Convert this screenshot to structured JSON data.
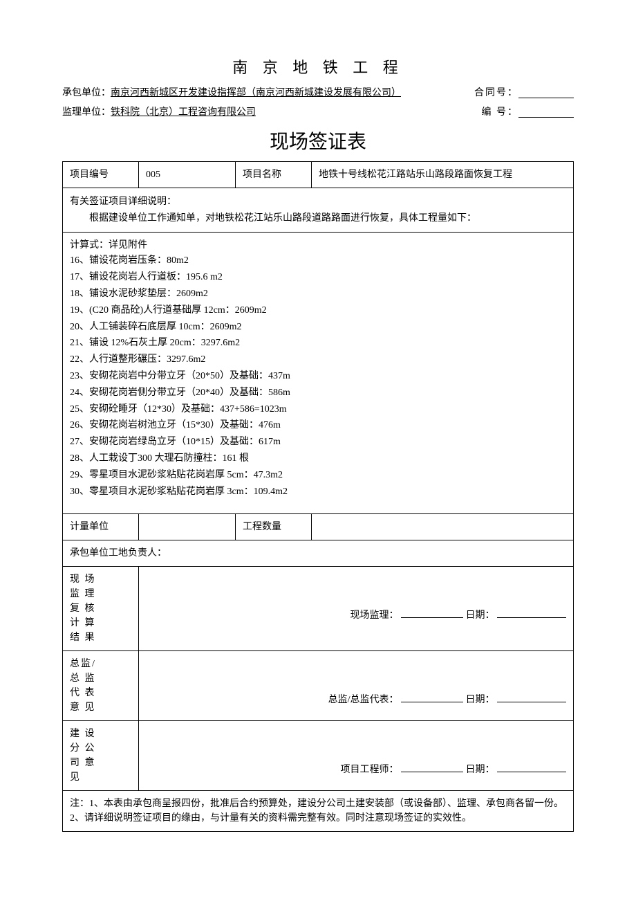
{
  "doc_title": "南 京 地 铁 工 程",
  "header": {
    "contractor_label": "承包单位：",
    "contractor_value": "南京河西新城区开发建设指挥部（南京河西新城建设发展有限公司）",
    "contract_no_label": "合同号：",
    "supervisor_label": "监理单位：",
    "supervisor_value": "铁科院（北京）工程咨询有限公司",
    "serial_no_label": "编  号："
  },
  "form_title": "现场签证表",
  "row1": {
    "proj_no_label": "项目编号",
    "proj_no_value": "005",
    "proj_name_label": "项目名称",
    "proj_name_value": "地铁十号线松花江路站乐山路段路面恢复工程"
  },
  "detail": {
    "intro_label": "有关签证项目详细说明：",
    "intro_text": "根据建设单位工作通知单，对地铁松花江站乐山路段道路路面进行恢复，具体工程量如下：",
    "calc_label": "计算式：详见附件",
    "items": [
      "16、铺设花岗岩压条：80m2",
      "17、铺设花岗岩人行道板：195.6 m2",
      "18、铺设水泥砂浆垫层：2609m2",
      "19、(C20 商品砼)人行道基础厚 12cm：2609m2",
      "20、人工铺装碎石底层厚 10cm：2609m2",
      "21、铺设 12%石灰土厚 20cm：3297.6m2",
      "22、人行道整形碾压：3297.6m2",
      "23、安砌花岗岩中分带立牙（20*50）及基础：437m",
      "24、安砌花岗岩侧分带立牙（20*40）及基础：586m",
      "25、安砌砼睡牙（12*30）及基础：437+586=1023m",
      "26、安砌花岗岩树池立牙（15*30）及基础：476m",
      "27、安砌花岗岩绿岛立牙（10*15）及基础：617m",
      "28、人工栽设㆜300 大理石防撞柱：161 根",
      "29、零星项目水泥砂浆粘贴花岗岩厚 5cm：47.3m2",
      "30、零星项目水泥砂浆粘贴花岗岩厚 3cm：109.4m2"
    ]
  },
  "row_qty": {
    "unit_label": "计量单位",
    "unit_value": "",
    "qty_label": "工程数量",
    "qty_value": ""
  },
  "contractor_mgr_label": "承包单位工地负责人：",
  "section_supervisor": {
    "side_label": "现 场监 理复 核计 算结 果",
    "sign_label": "现场监理：",
    "date_label": "日期："
  },
  "section_director": {
    "side_label": "总监/总 监代 表意 见",
    "sign_label": "总监/总监代表：",
    "date_label": "日期："
  },
  "section_builder": {
    "side_label": "建 设分 公司 意见",
    "sign_label": "项目工程师：",
    "date_label": "日期："
  },
  "footnote": {
    "line1": "注：1、本表由承包商呈报四份，批准后合约预算处，建设分公司土建安装部（或设备部）、监理、承包商各留一份。",
    "line2": "2、请详细说明签证项目的缘由，与计量有关的资料需完整有效。同时注意现场签证的实效性。"
  }
}
